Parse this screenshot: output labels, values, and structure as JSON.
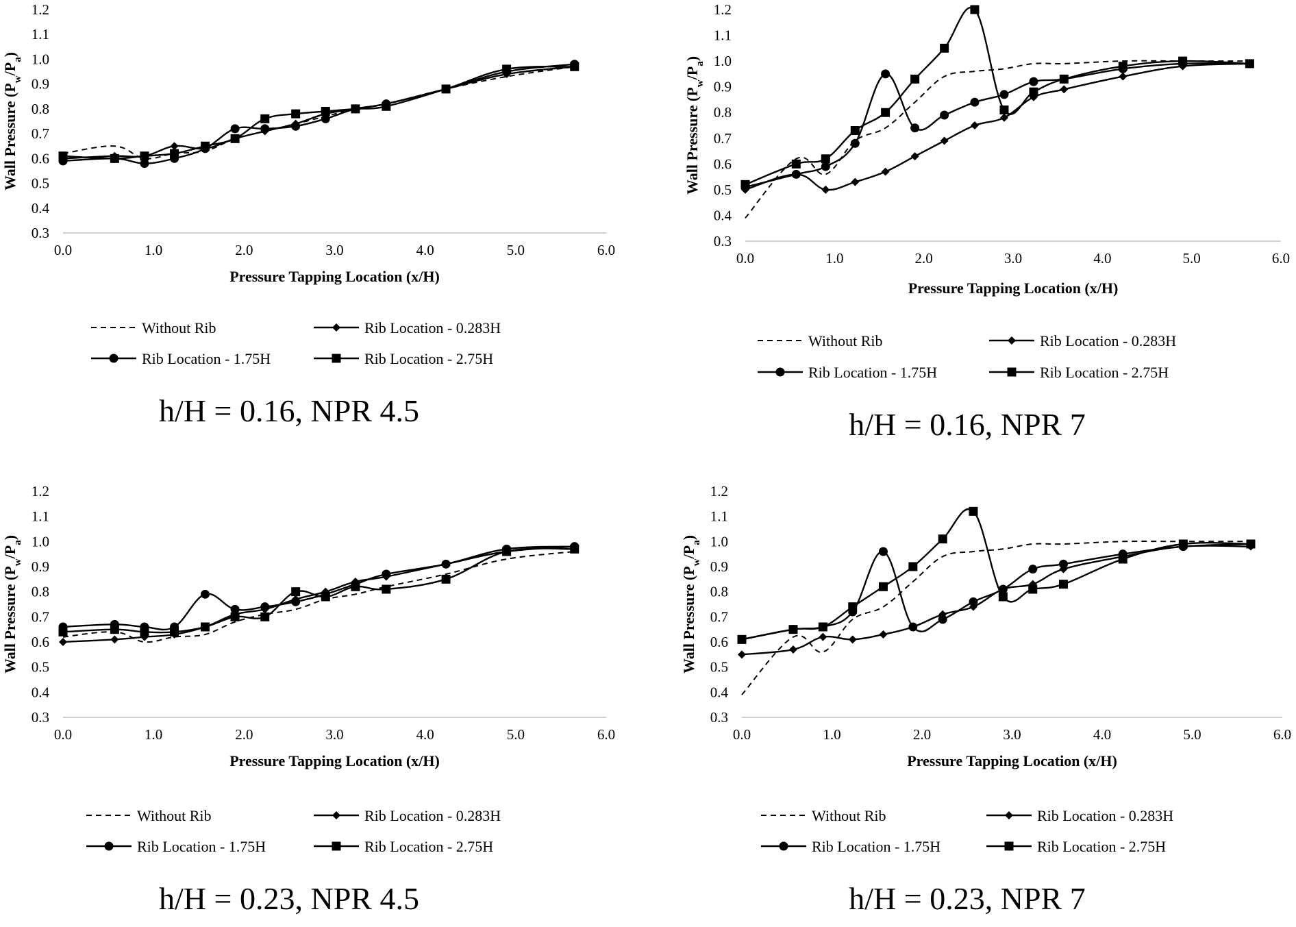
{
  "figure": {
    "colors": {
      "line": "#000000",
      "axis": "#bfbfbf",
      "background": "#ffffff"
    }
  },
  "chart_data": [
    {
      "type": "line",
      "caption": "h/H = 0.16, NPR 4.5",
      "xlabel": "Pressure Tapping Location (x/H)",
      "ylabel": "Wall Pressure (P",
      "ylabel_sub1": "w",
      "ylabel_mid": "/P",
      "ylabel_sub2": "a",
      "ylabel_end": ")",
      "xlim": [
        0.0,
        6.0
      ],
      "ylim": [
        0.3,
        1.2
      ],
      "x_ticks": [
        "0.0",
        "1.0",
        "2.0",
        "3.0",
        "4.0",
        "5.0",
        "6.0"
      ],
      "y_ticks": [
        "0.3",
        "0.4",
        "0.5",
        "0.6",
        "0.7",
        "0.8",
        "0.9",
        "1.0",
        "1.1",
        "1.2"
      ],
      "x": [
        0.0,
        0.57,
        0.9,
        1.23,
        1.57,
        1.9,
        2.23,
        2.57,
        2.9,
        3.23,
        3.57,
        4.23,
        4.9,
        5.65
      ],
      "series": [
        {
          "name": "Without Rib",
          "style": "dashed",
          "marker": "none",
          "values": [
            0.62,
            0.65,
            0.6,
            0.62,
            0.63,
            0.68,
            0.71,
            0.74,
            0.77,
            0.8,
            0.82,
            0.88,
            0.93,
            0.97
          ]
        },
        {
          "name": "Rib Location - 0.283H",
          "style": "solid",
          "marker": "diamond",
          "values": [
            0.6,
            0.61,
            0.61,
            0.65,
            0.64,
            0.68,
            0.71,
            0.74,
            0.78,
            0.8,
            0.82,
            0.88,
            0.94,
            0.97
          ]
        },
        {
          "name": "Rib Location - 1.75H",
          "style": "solid",
          "marker": "circle",
          "values": [
            0.59,
            0.6,
            0.58,
            0.6,
            0.64,
            0.72,
            0.72,
            0.73,
            0.76,
            0.8,
            0.82,
            0.88,
            0.95,
            0.98
          ]
        },
        {
          "name": "Rib Location - 2.75H",
          "style": "solid",
          "marker": "square",
          "values": [
            0.61,
            0.6,
            0.61,
            0.62,
            0.65,
            0.68,
            0.76,
            0.78,
            0.79,
            0.8,
            0.81,
            0.88,
            0.96,
            0.97
          ]
        }
      ]
    },
    {
      "type": "line",
      "caption": "h/H = 0.16, NPR 7",
      "xlabel": "Pressure Tapping Location (x/H)",
      "ylabel": "Wall Pressure (P",
      "ylabel_sub1": "w",
      "ylabel_mid": "/P",
      "ylabel_sub2": "a",
      "ylabel_end": ")",
      "xlim": [
        0.0,
        6.0
      ],
      "ylim": [
        0.3,
        1.2
      ],
      "x_ticks": [
        "0.0",
        "1.0",
        "2.0",
        "3.0",
        "4.0",
        "5.0",
        "6.0"
      ],
      "y_ticks": [
        "0.3",
        "0.4",
        "0.5",
        "0.6",
        "0.7",
        "0.8",
        "0.9",
        "1.0",
        "1.1",
        "1.2"
      ],
      "x": [
        0.0,
        0.57,
        0.9,
        1.23,
        1.57,
        1.9,
        2.23,
        2.57,
        2.9,
        3.23,
        3.57,
        4.23,
        4.9,
        5.65
      ],
      "series": [
        {
          "name": "Without Rib",
          "style": "dashed",
          "marker": "none",
          "values": [
            0.39,
            0.62,
            0.56,
            0.69,
            0.74,
            0.84,
            0.94,
            0.96,
            0.97,
            0.99,
            0.99,
            1.0,
            1.0,
            1.0
          ]
        },
        {
          "name": "Rib Location - 0.283H",
          "style": "solid",
          "marker": "diamond",
          "values": [
            0.5,
            0.56,
            0.5,
            0.53,
            0.57,
            0.63,
            0.69,
            0.75,
            0.78,
            0.86,
            0.89,
            0.94,
            0.98,
            0.99
          ]
        },
        {
          "name": "Rib Location - 1.75H",
          "style": "solid",
          "marker": "circle",
          "values": [
            0.51,
            0.56,
            0.59,
            0.68,
            0.95,
            0.74,
            0.79,
            0.84,
            0.87,
            0.92,
            0.93,
            0.97,
            0.99,
            0.99
          ]
        },
        {
          "name": "Rib Location - 2.75H",
          "style": "solid",
          "marker": "square",
          "values": [
            0.52,
            0.6,
            0.62,
            0.73,
            0.8,
            0.93,
            1.05,
            1.2,
            0.81,
            0.88,
            0.93,
            0.98,
            1.0,
            0.99
          ]
        }
      ]
    },
    {
      "type": "line",
      "caption": "h/H = 0.23, NPR 4.5",
      "xlabel": "Pressure Tapping Location (x/H)",
      "ylabel": "Wall Pressure (P",
      "ylabel_sub1": "w",
      "ylabel_mid": "/P",
      "ylabel_sub2": "a",
      "ylabel_end": ")",
      "xlim": [
        0.0,
        6.0
      ],
      "ylim": [
        0.3,
        1.2
      ],
      "x_ticks": [
        "0.0",
        "1.0",
        "2.0",
        "3.0",
        "4.0",
        "5.0",
        "6.0"
      ],
      "y_ticks": [
        "0.3",
        "0.4",
        "0.5",
        "0.6",
        "0.7",
        "0.8",
        "0.9",
        "1.0",
        "1.1",
        "1.2"
      ],
      "x": [
        0.0,
        0.57,
        0.9,
        1.23,
        1.57,
        1.9,
        2.23,
        2.57,
        2.9,
        3.23,
        3.57,
        4.23,
        4.9,
        5.65
      ],
      "series": [
        {
          "name": "Without Rib",
          "style": "dashed",
          "marker": "none",
          "values": [
            0.62,
            0.64,
            0.6,
            0.62,
            0.63,
            0.68,
            0.71,
            0.73,
            0.77,
            0.79,
            0.82,
            0.87,
            0.93,
            0.96
          ]
        },
        {
          "name": "Rib Location - 0.283H",
          "style": "solid",
          "marker": "diamond",
          "values": [
            0.6,
            0.61,
            0.62,
            0.63,
            0.66,
            0.71,
            0.73,
            0.77,
            0.8,
            0.84,
            0.86,
            0.91,
            0.96,
            0.98
          ]
        },
        {
          "name": "Rib Location - 1.75H",
          "style": "solid",
          "marker": "circle",
          "values": [
            0.66,
            0.67,
            0.66,
            0.66,
            0.79,
            0.73,
            0.74,
            0.76,
            0.79,
            0.83,
            0.87,
            0.91,
            0.97,
            0.98
          ]
        },
        {
          "name": "Rib Location - 2.75H",
          "style": "solid",
          "marker": "square",
          "values": [
            0.64,
            0.65,
            0.64,
            0.64,
            0.66,
            0.7,
            0.7,
            0.8,
            0.78,
            0.82,
            0.81,
            0.85,
            0.96,
            0.97
          ]
        }
      ]
    },
    {
      "type": "line",
      "caption": "h/H = 0.23, NPR 7",
      "xlabel": "Pressure Tapping Location (x/H)",
      "ylabel": "Wall Pressure (P",
      "ylabel_sub1": "w",
      "ylabel_mid": "/P",
      "ylabel_sub2": "a",
      "ylabel_end": ")",
      "xlim": [
        0.0,
        6.0
      ],
      "ylim": [
        0.3,
        1.2
      ],
      "x_ticks": [
        "0.0",
        "1.0",
        "2.0",
        "3.0",
        "4.0",
        "5.0",
        "6.0"
      ],
      "y_ticks": [
        "0.3",
        "0.4",
        "0.5",
        "0.6",
        "0.7",
        "0.8",
        "0.9",
        "1.0",
        "1.1",
        "1.2"
      ],
      "x": [
        0.0,
        0.57,
        0.9,
        1.23,
        1.57,
        1.9,
        2.23,
        2.57,
        2.9,
        3.23,
        3.57,
        4.23,
        4.9,
        5.65
      ],
      "series": [
        {
          "name": "Without Rib",
          "style": "dashed",
          "marker": "none",
          "values": [
            0.39,
            0.62,
            0.56,
            0.69,
            0.74,
            0.84,
            0.94,
            0.96,
            0.97,
            0.99,
            0.99,
            1.0,
            1.0,
            1.0
          ]
        },
        {
          "name": "Rib Location - 0.283H",
          "style": "solid",
          "marker": "diamond",
          "values": [
            0.55,
            0.57,
            0.62,
            0.61,
            0.63,
            0.66,
            0.71,
            0.74,
            0.81,
            0.83,
            0.89,
            0.94,
            0.98,
            0.98
          ]
        },
        {
          "name": "Rib Location - 1.75H",
          "style": "solid",
          "marker": "circle",
          "values": [
            0.61,
            0.65,
            0.66,
            0.72,
            0.96,
            0.66,
            0.69,
            0.76,
            0.81,
            0.89,
            0.91,
            0.95,
            0.98,
            0.99
          ]
        },
        {
          "name": "Rib Location - 2.75H",
          "style": "solid",
          "marker": "square",
          "values": [
            0.61,
            0.65,
            0.66,
            0.74,
            0.82,
            0.9,
            1.01,
            1.12,
            0.78,
            0.81,
            0.83,
            0.93,
            0.99,
            0.99
          ]
        }
      ]
    }
  ]
}
